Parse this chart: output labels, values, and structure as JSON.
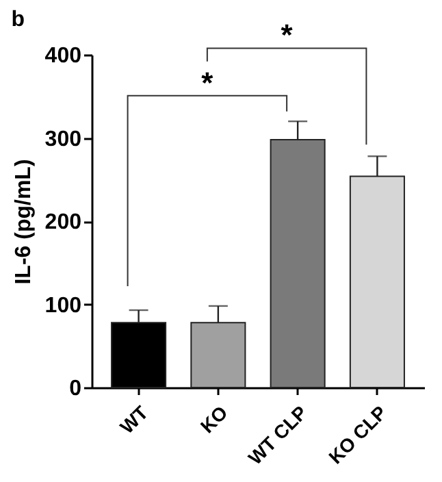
{
  "chart_data": {
    "type": "bar",
    "title": "b",
    "ylabel": "IL-6 (pg/mL)",
    "categories": [
      "WT",
      "KO",
      "WT CLP",
      "KO CLP"
    ],
    "values": [
      78,
      78,
      298,
      254
    ],
    "errors": [
      15,
      20,
      22,
      24
    ],
    "colors": [
      "#000000",
      "#a0a0a0",
      "#7a7a7a",
      "#d6d6d6"
    ],
    "ylim": [
      0,
      400
    ],
    "yticks": [
      0,
      100,
      200,
      300,
      400
    ],
    "grid": false,
    "annotations": [
      "*",
      "*"
    ]
  }
}
